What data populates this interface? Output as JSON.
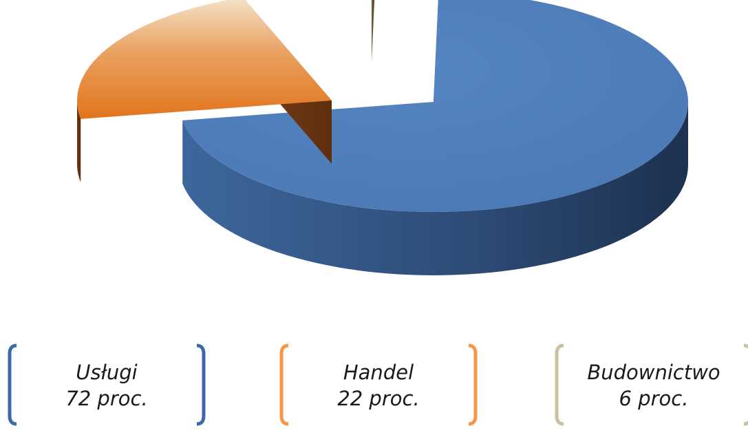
{
  "chart_data": {
    "type": "pie",
    "style": "3d-exploded",
    "title": "",
    "slices": [
      {
        "label": "Usługi",
        "value": 72,
        "value_label": "72 proc.",
        "color": "#4f81bd"
      },
      {
        "label": "Handel",
        "value": 22,
        "value_label": "22 proc.",
        "color": "#e4761c"
      },
      {
        "label": "Budownictwo",
        "value": 6,
        "value_label": "6 proc.",
        "color": "#c4b98c"
      }
    ],
    "legend_position": "bottom",
    "legend_bracket_colors": [
      "#3b6aa8",
      "#f79646",
      "#c8c0a0"
    ]
  }
}
